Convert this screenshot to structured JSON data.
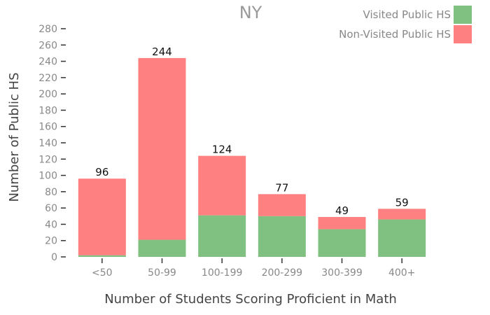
{
  "chart_data": {
    "type": "bar",
    "stacked": true,
    "title": "NY",
    "xlabel": "Number of Students Scoring Proficient in Math",
    "ylabel": "Number of Public HS",
    "categories": [
      "<50",
      "50-99",
      "100-199",
      "200-299",
      "300-399",
      "400+"
    ],
    "series": [
      {
        "name": "Visited Public HS",
        "values": [
          2,
          21,
          51,
          50,
          34,
          46
        ],
        "color": "#80c080"
      },
      {
        "name": "Non-Visited Public HS",
        "values": [
          94,
          223,
          73,
          27,
          15,
          13
        ],
        "color": "#ff8080"
      }
    ],
    "totals": [
      "96",
      "244",
      "124",
      "77",
      "49",
      "59"
    ],
    "yticks": [
      "0",
      "20",
      "40",
      "60",
      "80",
      "100",
      "120",
      "140",
      "160",
      "180",
      "200",
      "220",
      "240",
      "260",
      "280"
    ],
    "ylim": [
      0,
      280
    ],
    "grid": false,
    "legend_position": "top-right"
  }
}
